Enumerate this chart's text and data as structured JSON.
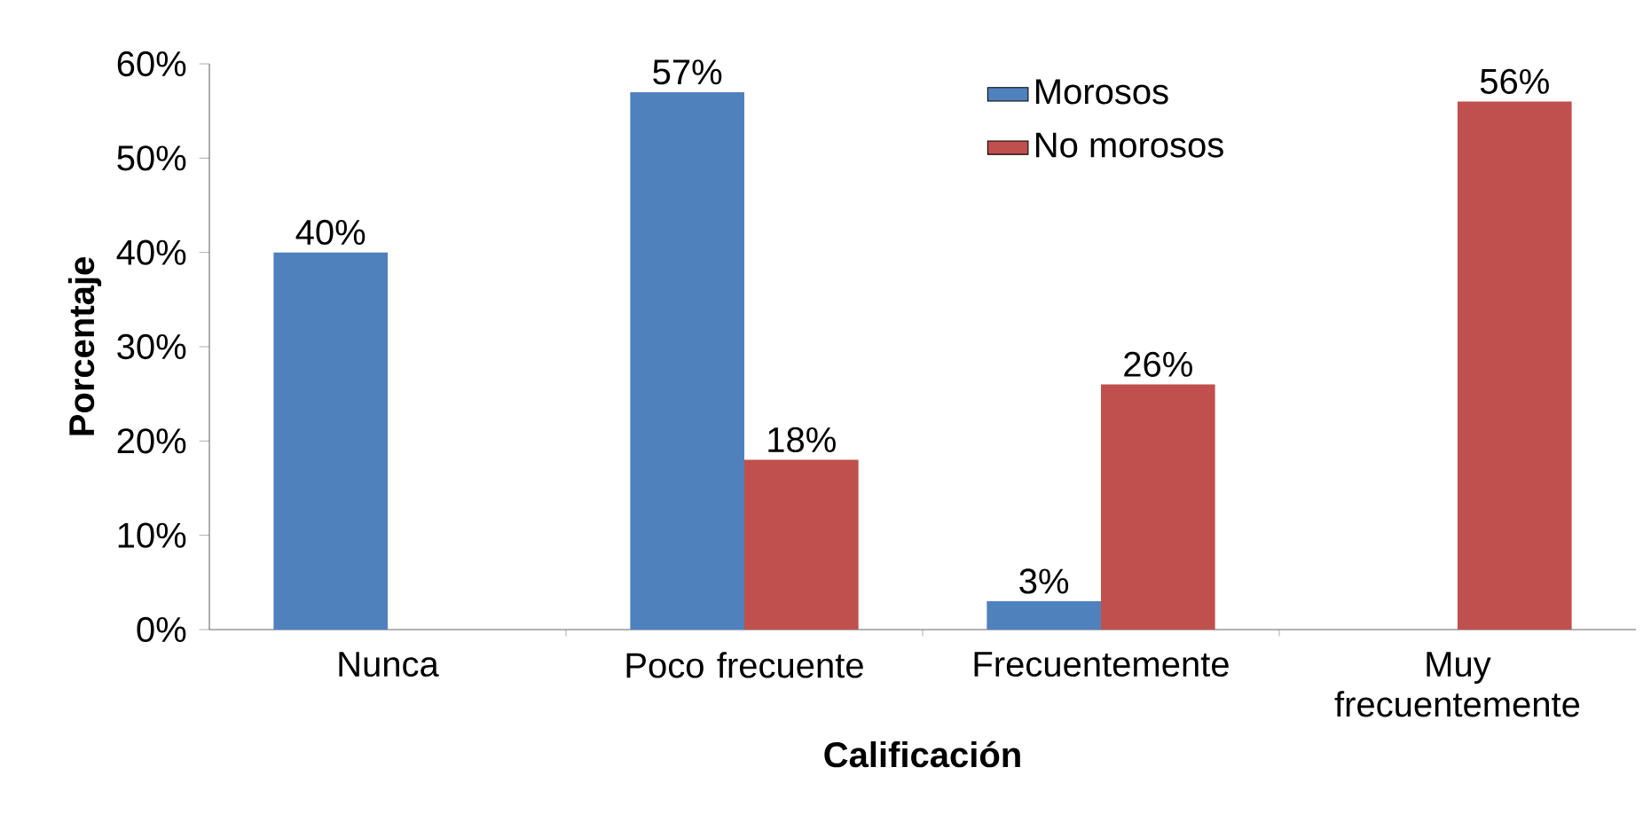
{
  "chart_data": {
    "type": "bar",
    "xlabel": "Calificación",
    "ylabel": "Porcentaje",
    "categories": [
      "Nunca",
      "Poco frecuente",
      "Frecuentemente",
      "Muy frecuentemente"
    ],
    "series": [
      {
        "name": "Morosos",
        "color": "#4f81bd",
        "values": [
          40,
          57,
          3,
          null
        ],
        "value_labels": [
          "40%",
          "57%",
          "3%",
          null
        ]
      },
      {
        "name": "No morosos",
        "color": "#c0504d",
        "values": [
          null,
          18,
          26,
          56
        ],
        "value_labels": [
          null,
          "18%",
          "26%",
          "56%"
        ]
      }
    ],
    "ylim": [
      0,
      60
    ],
    "yticks": [
      {
        "value": 0,
        "label": "0%"
      },
      {
        "value": 10,
        "label": "10%"
      },
      {
        "value": 20,
        "label": "20%"
      },
      {
        "value": 30,
        "label": "30%"
      },
      {
        "value": 40,
        "label": "40%"
      },
      {
        "value": 50,
        "label": "50%"
      },
      {
        "value": 60,
        "label": "60%"
      }
    ],
    "grid": false,
    "legend": "top right"
  }
}
